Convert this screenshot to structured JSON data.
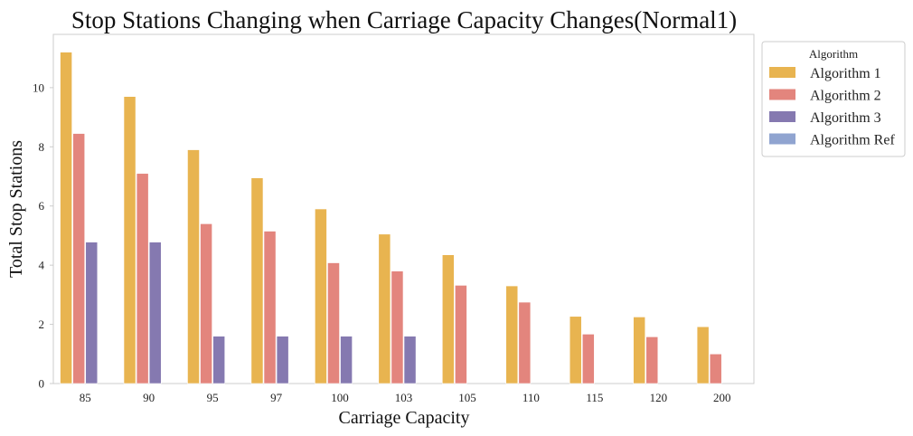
{
  "chart_data": {
    "type": "bar",
    "title": "Stop Stations Changing when Carriage Capacity Changes(Normal1)",
    "xlabel": "Carriage Capacity",
    "ylabel": "Total Stop Stations",
    "categories": [
      "85",
      "90",
      "95",
      "97",
      "100",
      "103",
      "105",
      "110",
      "115",
      "120",
      "200"
    ],
    "ylim": [
      0,
      11.8
    ],
    "yticks": [
      0,
      2,
      4,
      6,
      8,
      10
    ],
    "grid": false,
    "legend": {
      "title": "Algorithm",
      "placement": "outside-top-right"
    },
    "series": [
      {
        "name": "Algorithm 1",
        "color": "#E8B450",
        "values": [
          11.2,
          9.7,
          7.9,
          6.95,
          5.9,
          5.05,
          4.35,
          3.3,
          2.27,
          2.25,
          1.92
        ]
      },
      {
        "name": "Algorithm 2",
        "color": "#E3857D",
        "values": [
          8.45,
          7.1,
          5.4,
          5.15,
          4.08,
          3.8,
          3.32,
          2.75,
          1.67,
          1.58,
          1.0
        ]
      },
      {
        "name": "Algorithm 3",
        "color": "#8579B0",
        "values": [
          4.78,
          4.78,
          1.6,
          1.6,
          1.6,
          1.6,
          0,
          0,
          0,
          0,
          0
        ]
      },
      {
        "name": "Algorithm Ref",
        "color": "#90A4D0",
        "values": [
          0,
          0,
          0,
          0,
          0,
          0,
          0,
          0,
          0,
          0,
          0
        ]
      }
    ]
  }
}
